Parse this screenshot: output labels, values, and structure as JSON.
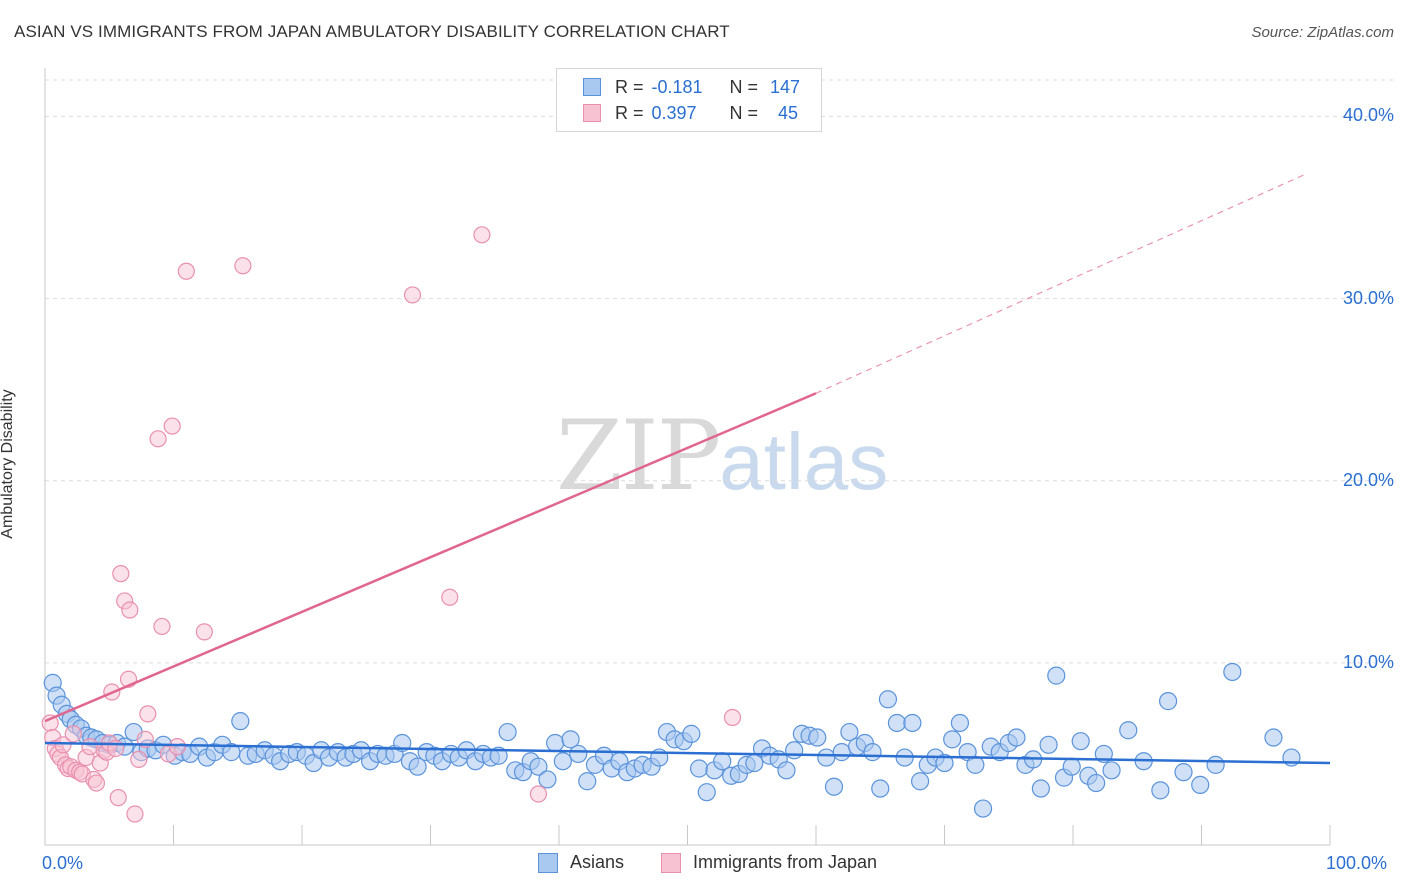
{
  "header": {
    "title": "ASIAN VS IMMIGRANTS FROM JAPAN AMBULATORY DISABILITY CORRELATION CHART",
    "source": "Source: ZipAtlas.com"
  },
  "watermark": {
    "zip": "ZIP",
    "atlas": "atlas"
  },
  "legend": {
    "rows": [
      {
        "r_key": "R =",
        "r_val": "-0.181",
        "n_key": "N =",
        "n_val": "147"
      },
      {
        "r_key": "R =",
        "r_val": "0.397",
        "n_key": "N =",
        "n_val": "45"
      }
    ]
  },
  "bottom_legend": {
    "asians": "Asians",
    "japan": "Immigrants from Japan"
  },
  "colors": {
    "asian_fill": "#a9c9f0",
    "asian_stroke": "#5b93db",
    "asian_line": "#2a6fd1",
    "japan_fill": "#f7c3d3",
    "japan_stroke": "#e990ae",
    "japan_line": "#e0668f",
    "grid": "#dcdcdc",
    "axis_text": "#2a6fd1"
  },
  "chart_data": {
    "type": "scatter",
    "title": "ASIAN VS IMMIGRANTS FROM JAPAN AMBULATORY DISABILITY CORRELATION CHART",
    "xlabel": "",
    "ylabel": "Ambulatory Disability",
    "xlim": [
      0,
      100
    ],
    "ylim": [
      0,
      42
    ],
    "x_tick_labels": [
      "0.0%",
      "100.0%"
    ],
    "y_ticks": [
      10,
      20,
      30,
      40
    ],
    "y_tick_labels": [
      "10.0%",
      "20.0%",
      "30.0%",
      "40.0%"
    ],
    "grid": true,
    "legend_position": "top-center",
    "series": [
      {
        "name": "Asians",
        "r": -0.181,
        "n": 147,
        "trend": {
          "x": [
            0,
            100
          ],
          "y": [
            5.6,
            4.5
          ],
          "dashed_from": null
        },
        "points": [
          [
            0.6,
            8.9
          ],
          [
            0.9,
            8.2
          ],
          [
            1.3,
            7.7
          ],
          [
            1.7,
            7.2
          ],
          [
            2.0,
            6.9
          ],
          [
            2.4,
            6.6
          ],
          [
            2.8,
            6.4
          ],
          [
            3.2,
            6.0
          ],
          [
            3.6,
            5.9
          ],
          [
            4.0,
            5.8
          ],
          [
            4.5,
            5.6
          ],
          [
            5.0,
            5.5
          ],
          [
            5.6,
            5.6
          ],
          [
            6.2,
            5.4
          ],
          [
            6.9,
            6.2
          ],
          [
            7.5,
            5.1
          ],
          [
            8.0,
            5.3
          ],
          [
            8.6,
            5.2
          ],
          [
            9.2,
            5.5
          ],
          [
            10.1,
            4.9
          ],
          [
            10.7,
            5.1
          ],
          [
            11.3,
            5.0
          ],
          [
            12.0,
            5.4
          ],
          [
            12.6,
            4.8
          ],
          [
            13.2,
            5.1
          ],
          [
            13.8,
            5.5
          ],
          [
            14.5,
            5.1
          ],
          [
            15.2,
            6.8
          ],
          [
            15.8,
            4.9
          ],
          [
            16.4,
            5.0
          ],
          [
            17.1,
            5.2
          ],
          [
            17.8,
            4.9
          ],
          [
            18.3,
            4.6
          ],
          [
            19.0,
            5.0
          ],
          [
            19.6,
            5.1
          ],
          [
            20.3,
            4.9
          ],
          [
            20.9,
            4.5
          ],
          [
            21.5,
            5.2
          ],
          [
            22.1,
            4.8
          ],
          [
            22.8,
            5.1
          ],
          [
            23.4,
            4.8
          ],
          [
            24.0,
            5.0
          ],
          [
            24.6,
            5.2
          ],
          [
            25.3,
            4.6
          ],
          [
            25.9,
            5.0
          ],
          [
            26.5,
            4.9
          ],
          [
            27.2,
            5.0
          ],
          [
            27.8,
            5.6
          ],
          [
            28.4,
            4.6
          ],
          [
            29.0,
            4.3
          ],
          [
            29.7,
            5.1
          ],
          [
            30.3,
            4.9
          ],
          [
            30.9,
            4.6
          ],
          [
            31.6,
            5.0
          ],
          [
            32.2,
            4.8
          ],
          [
            32.8,
            5.2
          ],
          [
            33.5,
            4.6
          ],
          [
            34.1,
            5.0
          ],
          [
            34.7,
            4.8
          ],
          [
            35.3,
            4.9
          ],
          [
            36.0,
            6.2
          ],
          [
            36.6,
            4.1
          ],
          [
            37.2,
            4.0
          ],
          [
            37.8,
            4.6
          ],
          [
            38.4,
            4.3
          ],
          [
            39.1,
            3.6
          ],
          [
            39.7,
            5.6
          ],
          [
            40.3,
            4.6
          ],
          [
            40.9,
            5.8
          ],
          [
            41.5,
            5.0
          ],
          [
            42.2,
            3.5
          ],
          [
            42.8,
            4.4
          ],
          [
            43.5,
            4.9
          ],
          [
            44.1,
            4.2
          ],
          [
            44.7,
            4.6
          ],
          [
            45.3,
            4.0
          ],
          [
            45.9,
            4.2
          ],
          [
            46.5,
            4.4
          ],
          [
            47.2,
            4.3
          ],
          [
            47.8,
            4.8
          ],
          [
            48.4,
            6.2
          ],
          [
            49.0,
            5.8
          ],
          [
            49.7,
            5.7
          ],
          [
            50.3,
            6.1
          ],
          [
            50.9,
            4.2
          ],
          [
            51.5,
            2.9
          ],
          [
            52.1,
            4.1
          ],
          [
            52.7,
            4.6
          ],
          [
            53.4,
            3.8
          ],
          [
            54.0,
            3.9
          ],
          [
            54.6,
            4.4
          ],
          [
            55.2,
            4.5
          ],
          [
            55.8,
            5.3
          ],
          [
            56.4,
            4.9
          ],
          [
            57.1,
            4.7
          ],
          [
            57.7,
            4.1
          ],
          [
            58.3,
            5.2
          ],
          [
            58.9,
            6.1
          ],
          [
            59.5,
            6.0
          ],
          [
            60.1,
            5.9
          ],
          [
            60.8,
            4.8
          ],
          [
            61.4,
            3.2
          ],
          [
            62.0,
            5.1
          ],
          [
            62.6,
            6.2
          ],
          [
            63.2,
            5.4
          ],
          [
            63.8,
            5.6
          ],
          [
            64.4,
            5.1
          ],
          [
            65.0,
            3.1
          ],
          [
            65.6,
            8.0
          ],
          [
            66.3,
            6.7
          ],
          [
            66.9,
            4.8
          ],
          [
            67.5,
            6.7
          ],
          [
            68.1,
            3.5
          ],
          [
            68.7,
            4.4
          ],
          [
            69.3,
            4.8
          ],
          [
            70.0,
            4.5
          ],
          [
            70.6,
            5.8
          ],
          [
            71.2,
            6.7
          ],
          [
            71.8,
            5.1
          ],
          [
            72.4,
            4.4
          ],
          [
            73.0,
            2.0
          ],
          [
            73.6,
            5.4
          ],
          [
            74.3,
            5.1
          ],
          [
            75.0,
            5.6
          ],
          [
            75.6,
            5.9
          ],
          [
            76.3,
            4.4
          ],
          [
            76.9,
            4.7
          ],
          [
            77.5,
            3.1
          ],
          [
            78.1,
            5.5
          ],
          [
            78.7,
            9.3
          ],
          [
            79.3,
            3.7
          ],
          [
            79.9,
            4.3
          ],
          [
            80.6,
            5.7
          ],
          [
            81.2,
            3.8
          ],
          [
            81.8,
            3.4
          ],
          [
            82.4,
            5.0
          ],
          [
            83.0,
            4.1
          ],
          [
            84.3,
            6.3
          ],
          [
            85.5,
            4.6
          ],
          [
            86.8,
            3.0
          ],
          [
            87.4,
            7.9
          ],
          [
            88.6,
            4.0
          ],
          [
            89.9,
            3.3
          ],
          [
            91.1,
            4.4
          ],
          [
            92.4,
            9.5
          ],
          [
            95.6,
            5.9
          ],
          [
            97.0,
            4.8
          ]
        ]
      },
      {
        "name": "Immigrants from Japan",
        "r": 0.397,
        "n": 45,
        "trend": {
          "x": [
            0,
            60,
            98
          ],
          "y": [
            6.8,
            24.8,
            36.8
          ],
          "dashed_from": 60
        },
        "points": [
          [
            0.4,
            6.7
          ],
          [
            0.6,
            5.9
          ],
          [
            0.8,
            5.3
          ],
          [
            1.0,
            5.0
          ],
          [
            1.2,
            4.8
          ],
          [
            1.4,
            5.5
          ],
          [
            1.6,
            4.4
          ],
          [
            1.8,
            4.2
          ],
          [
            2.0,
            4.3
          ],
          [
            2.2,
            6.1
          ],
          [
            2.4,
            4.1
          ],
          [
            2.7,
            4.0
          ],
          [
            2.9,
            3.9
          ],
          [
            3.2,
            4.8
          ],
          [
            3.5,
            5.4
          ],
          [
            3.8,
            3.6
          ],
          [
            4.0,
            3.4
          ],
          [
            4.3,
            4.5
          ],
          [
            4.6,
            5.2
          ],
          [
            4.8,
            5.1
          ],
          [
            5.0,
            5.6
          ],
          [
            5.2,
            8.4
          ],
          [
            5.5,
            5.3
          ],
          [
            5.7,
            2.6
          ],
          [
            5.9,
            14.9
          ],
          [
            6.2,
            13.4
          ],
          [
            6.5,
            9.1
          ],
          [
            6.6,
            12.9
          ],
          [
            7.0,
            1.7
          ],
          [
            7.3,
            4.7
          ],
          [
            7.8,
            5.8
          ],
          [
            8.0,
            7.2
          ],
          [
            8.8,
            22.3
          ],
          [
            9.1,
            12.0
          ],
          [
            9.6,
            5.0
          ],
          [
            9.9,
            23.0
          ],
          [
            10.3,
            5.4
          ],
          [
            11.0,
            31.5
          ],
          [
            12.4,
            11.7
          ],
          [
            15.4,
            31.8
          ],
          [
            28.6,
            30.2
          ],
          [
            31.5,
            13.6
          ],
          [
            34.0,
            33.5
          ],
          [
            38.4,
            2.8
          ],
          [
            53.5,
            7.0
          ]
        ]
      }
    ]
  }
}
